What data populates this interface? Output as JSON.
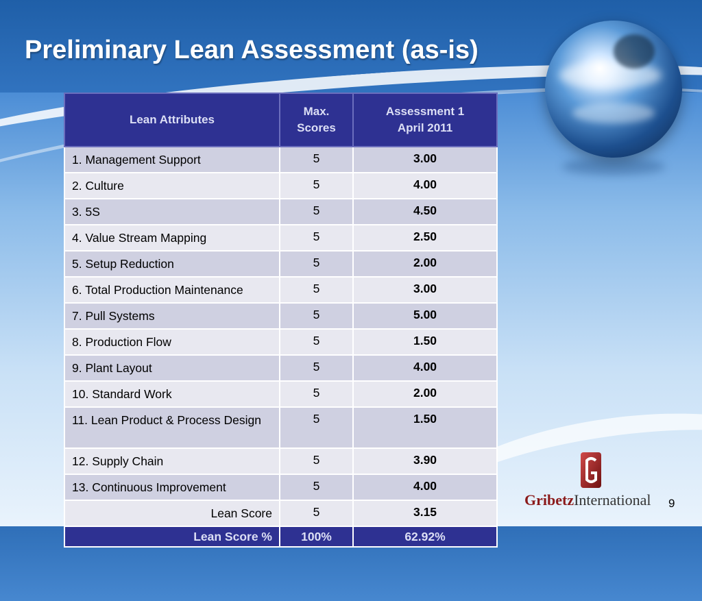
{
  "slide": {
    "title": "Preliminary Lean Assessment (as-is)",
    "page_number": "9"
  },
  "table": {
    "headers": {
      "attributes": "Lean Attributes",
      "max_line1": "Max.",
      "max_line2": "Scores",
      "assess_line1": "Assessment 1",
      "assess_line2": "April 2011"
    },
    "rows": [
      {
        "attribute": "1. Management Support",
        "max": "5",
        "score": "3.00"
      },
      {
        "attribute": "2. Culture",
        "max": "5",
        "score": "4.00"
      },
      {
        "attribute": "3. 5S",
        "max": "5",
        "score": "4.50"
      },
      {
        "attribute": "4. Value Stream Mapping",
        "max": "5",
        "score": "2.50"
      },
      {
        "attribute": "5. Setup Reduction",
        "max": "5",
        "score": "2.00"
      },
      {
        "attribute": "6. Total Production Maintenance",
        "max": "5",
        "score": "3.00"
      },
      {
        "attribute": "7. Pull Systems",
        "max": "5",
        "score": "5.00"
      },
      {
        "attribute": "8. Production Flow",
        "max": "5",
        "score": "1.50"
      },
      {
        "attribute": "9. Plant Layout",
        "max": "5",
        "score": "4.00"
      },
      {
        "attribute": "10. Standard Work",
        "max": "5",
        "score": "2.00"
      },
      {
        "attribute": "11. Lean Product & Process Design",
        "max": "5",
        "score": "1.50"
      },
      {
        "attribute": "12. Supply Chain",
        "max": "5",
        "score": "3.90"
      },
      {
        "attribute": "13. Continuous Improvement",
        "max": "5",
        "score": "4.00"
      }
    ],
    "lean_score": {
      "label": "Lean Score",
      "max": "5",
      "score": "3.15"
    },
    "lean_score_pct": {
      "label": "Lean Score %",
      "max": "100%",
      "score": "62.92%"
    }
  },
  "logo": {
    "name_bold": "Gribetz",
    "name_rest": "International"
  },
  "colors": {
    "header_bg": "#2e3192",
    "row_odd": "#cfd0e1",
    "row_even": "#e8e8f0",
    "logo_red": "#8b1a1a"
  },
  "icons": [
    "globe-image",
    "gribetz-logo-mark"
  ]
}
